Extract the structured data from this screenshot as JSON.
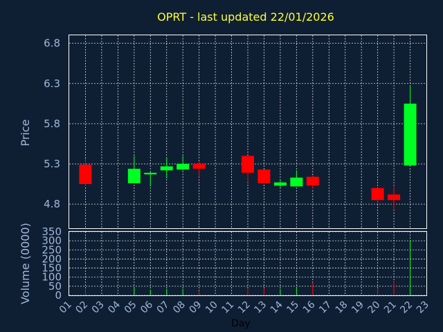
{
  "chart_data": {
    "type": "candlestick",
    "title": "OPRT - last updated 22/01/2026",
    "xlabel": "Day",
    "price_panel": {
      "ylabel": "Price",
      "ylim": [
        4.5,
        6.9
      ],
      "yticks": [
        "4.8",
        "5.3",
        "5.8",
        "6.3",
        "6.8"
      ]
    },
    "volume_panel": {
      "ylabel": "Volume (0000)",
      "ylim": [
        0,
        350
      ],
      "yticks": [
        "0",
        "50",
        "100",
        "150",
        "200",
        "250",
        "300",
        "350"
      ]
    },
    "x_ticks": [
      "01",
      "02",
      "03",
      "04",
      "05",
      "06",
      "07",
      "08",
      "09",
      "10",
      "11",
      "12",
      "13",
      "14",
      "15",
      "16",
      "17",
      "18",
      "19",
      "20",
      "21",
      "22",
      "23"
    ],
    "colors": {
      "up": "#00ff22",
      "down": "#ff0000"
    },
    "grid": true,
    "candles": [
      {
        "day": "02",
        "open": 5.29,
        "high": 5.37,
        "low": 5.02,
        "close": 5.05,
        "volume": 30
      },
      {
        "day": "05",
        "open": 5.06,
        "high": 5.4,
        "low": 5.06,
        "close": 5.24,
        "volume": 45
      },
      {
        "day": "06",
        "open": 5.17,
        "high": 5.21,
        "low": 5.02,
        "close": 5.19,
        "volume": 30
      },
      {
        "day": "07",
        "open": 5.22,
        "high": 5.38,
        "low": 5.12,
        "close": 5.27,
        "volume": 35
      },
      {
        "day": "08",
        "open": 5.23,
        "high": 5.4,
        "low": 5.22,
        "close": 5.3,
        "volume": 35
      },
      {
        "day": "09",
        "open": 5.3,
        "high": 5.33,
        "low": 5.14,
        "close": 5.24,
        "volume": 25
      },
      {
        "day": "12",
        "open": 5.4,
        "high": 5.4,
        "low": 5.07,
        "close": 5.19,
        "volume": 35
      },
      {
        "day": "13",
        "open": 5.23,
        "high": 5.23,
        "low": 5.05,
        "close": 5.06,
        "volume": 40
      },
      {
        "day": "14",
        "open": 5.03,
        "high": 5.1,
        "low": 5.0,
        "close": 5.07,
        "volume": 35
      },
      {
        "day": "15",
        "open": 5.02,
        "high": 5.22,
        "low": 5.02,
        "close": 5.13,
        "volume": 40
      },
      {
        "day": "16",
        "open": 5.14,
        "high": 5.16,
        "low": 4.99,
        "close": 5.03,
        "volume": 70
      },
      {
        "day": "20",
        "open": 5.0,
        "high": 5.0,
        "low": 4.8,
        "close": 4.85,
        "volume": 40
      },
      {
        "day": "21",
        "open": 4.92,
        "high": 5.03,
        "low": 4.73,
        "close": 4.85,
        "volume": 80
      },
      {
        "day": "22",
        "open": 5.28,
        "high": 6.28,
        "low": 5.28,
        "close": 6.05,
        "volume": 305
      }
    ]
  }
}
